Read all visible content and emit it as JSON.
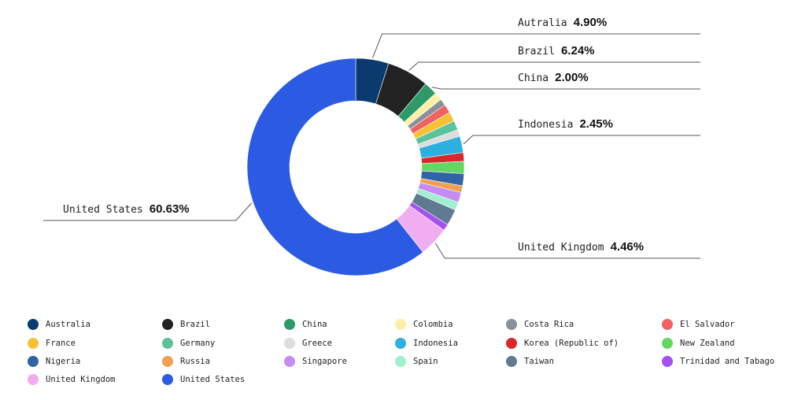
{
  "chart_data": {
    "type": "donut",
    "categories": [
      "Australia",
      "Brazil",
      "China",
      "Colombia",
      "Costa Rica",
      "El Salvador",
      "France",
      "Germany",
      "Greece",
      "Indonesia",
      "Korea (Republic of)",
      "New Zealand",
      "Nigeria",
      "Russia",
      "Singapore",
      "Spain",
      "Taiwan",
      "Trinidad and Tabago",
      "United Kingdom",
      "United States"
    ],
    "values": [
      4.9,
      6.24,
      2.0,
      1.2,
      1.0,
      1.3,
      1.4,
      1.4,
      1.0,
      2.45,
      1.3,
      1.8,
      1.8,
      1.0,
      1.5,
      1.22,
      2.4,
      1.0,
      4.46,
      60.63
    ],
    "value_labels": [
      "4.90%",
      "6.24%",
      "2.00%",
      null,
      null,
      null,
      null,
      null,
      null,
      "2.45%",
      null,
      null,
      null,
      null,
      null,
      null,
      null,
      null,
      "4.46%",
      "60.63%"
    ],
    "callout_names": [
      "Autralia",
      "Brazil",
      "China",
      null,
      null,
      null,
      null,
      null,
      null,
      "Indonesia",
      null,
      null,
      null,
      null,
      null,
      null,
      null,
      null,
      "United Kingdom",
      "United States"
    ],
    "colors": [
      "#0b3a6e",
      "#222222",
      "#2e9a6a",
      "#fdf0a6",
      "#8a8f98",
      "#f06262",
      "#f7c136",
      "#5cc29a",
      "#dddddd",
      "#2db0e0",
      "#d8282c",
      "#62d862",
      "#2f64a6",
      "#f0a050",
      "#c58cf5",
      "#a0f0d0",
      "#5f7a91",
      "#a550f0",
      "#f0aef0",
      "#2c5be3"
    ]
  }
}
